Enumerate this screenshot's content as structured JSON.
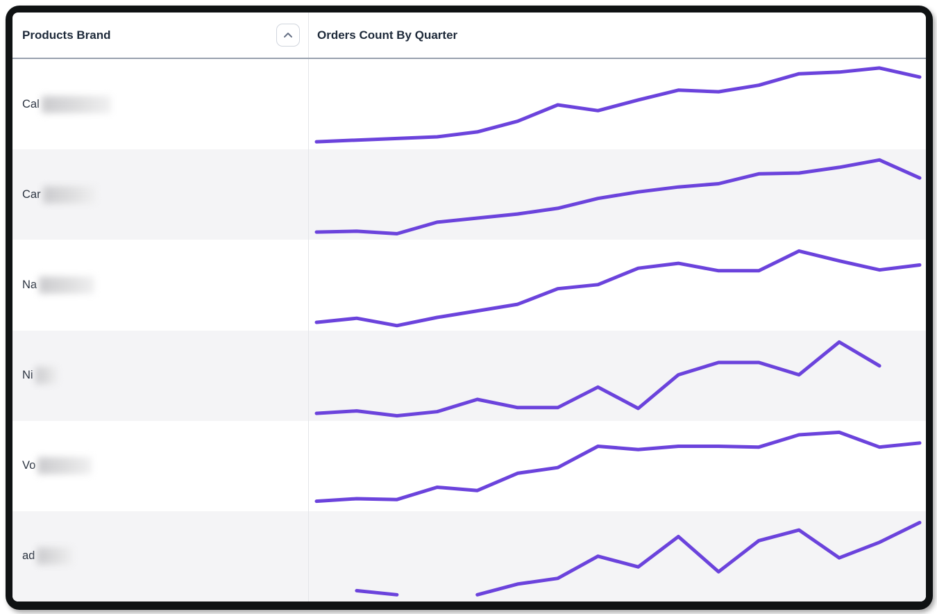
{
  "header": {
    "products_brand": "Products Brand",
    "orders_count": "Orders Count By Quarter"
  },
  "sort": {
    "direction": "ascending",
    "icon": "chevron-up-icon"
  },
  "colors": {
    "line": "#6b43dc",
    "row_alt_bg": "#f4f4f6",
    "header_text": "#1d2939",
    "brand_text": "#2b3340",
    "header_border": "#98a0ad",
    "column_divider": "#e3e5e9",
    "frame": "#0f1213"
  },
  "rows": [
    {
      "brand_prefix": "Cal",
      "redacted": true,
      "blur_width": 100
    },
    {
      "brand_prefix": "Car",
      "redacted": true,
      "blur_width": 76
    },
    {
      "brand_prefix": "Na",
      "redacted": true,
      "blur_width": 80
    },
    {
      "brand_prefix": "Ni",
      "redacted": true,
      "blur_width": 32
    },
    {
      "brand_prefix": "Vo",
      "redacted": true,
      "blur_width": 78
    },
    {
      "brand_prefix": "ad",
      "redacted": true,
      "blur_width": 52
    }
  ],
  "chart_data": {
    "type": "line",
    "title": "Orders Count By Quarter",
    "x": [
      1,
      2,
      3,
      4,
      5,
      6,
      7,
      8,
      9,
      10,
      11,
      12,
      13,
      14,
      15,
      16
    ],
    "xlabel": "Quarter",
    "ylabel": "Orders Count",
    "ylim": [
      0,
      100
    ],
    "grid": false,
    "legend": false,
    "line_color": "#6b43dc",
    "series": [
      {
        "name": "Cal…",
        "values": [
          5,
          7,
          9,
          11,
          17,
          30,
          50,
          43,
          56,
          68,
          66,
          74,
          88,
          90,
          95,
          84
        ]
      },
      {
        "name": "Car…",
        "values": [
          5,
          6,
          3,
          17,
          22,
          27,
          34,
          46,
          54,
          60,
          64,
          76,
          77,
          84,
          93,
          71
        ]
      },
      {
        "name": "Na…",
        "values": [
          5,
          10,
          1,
          11,
          19,
          27,
          46,
          51,
          71,
          77,
          68,
          68,
          92,
          80,
          69,
          75
        ]
      },
      {
        "name": "Ni…",
        "values": [
          5,
          8,
          2,
          7,
          22,
          12,
          12,
          37,
          11,
          52,
          67,
          67,
          52,
          92,
          63,
          null
        ]
      },
      {
        "name": "Vo…",
        "values": [
          8,
          11,
          10,
          25,
          21,
          42,
          49,
          75,
          71,
          75,
          75,
          74,
          89,
          92,
          74,
          79
        ]
      },
      {
        "name": "ad…",
        "values": [
          null,
          9,
          4,
          null,
          4,
          17,
          24,
          51,
          38,
          75,
          32,
          70,
          83,
          49,
          68,
          92
        ]
      }
    ]
  }
}
